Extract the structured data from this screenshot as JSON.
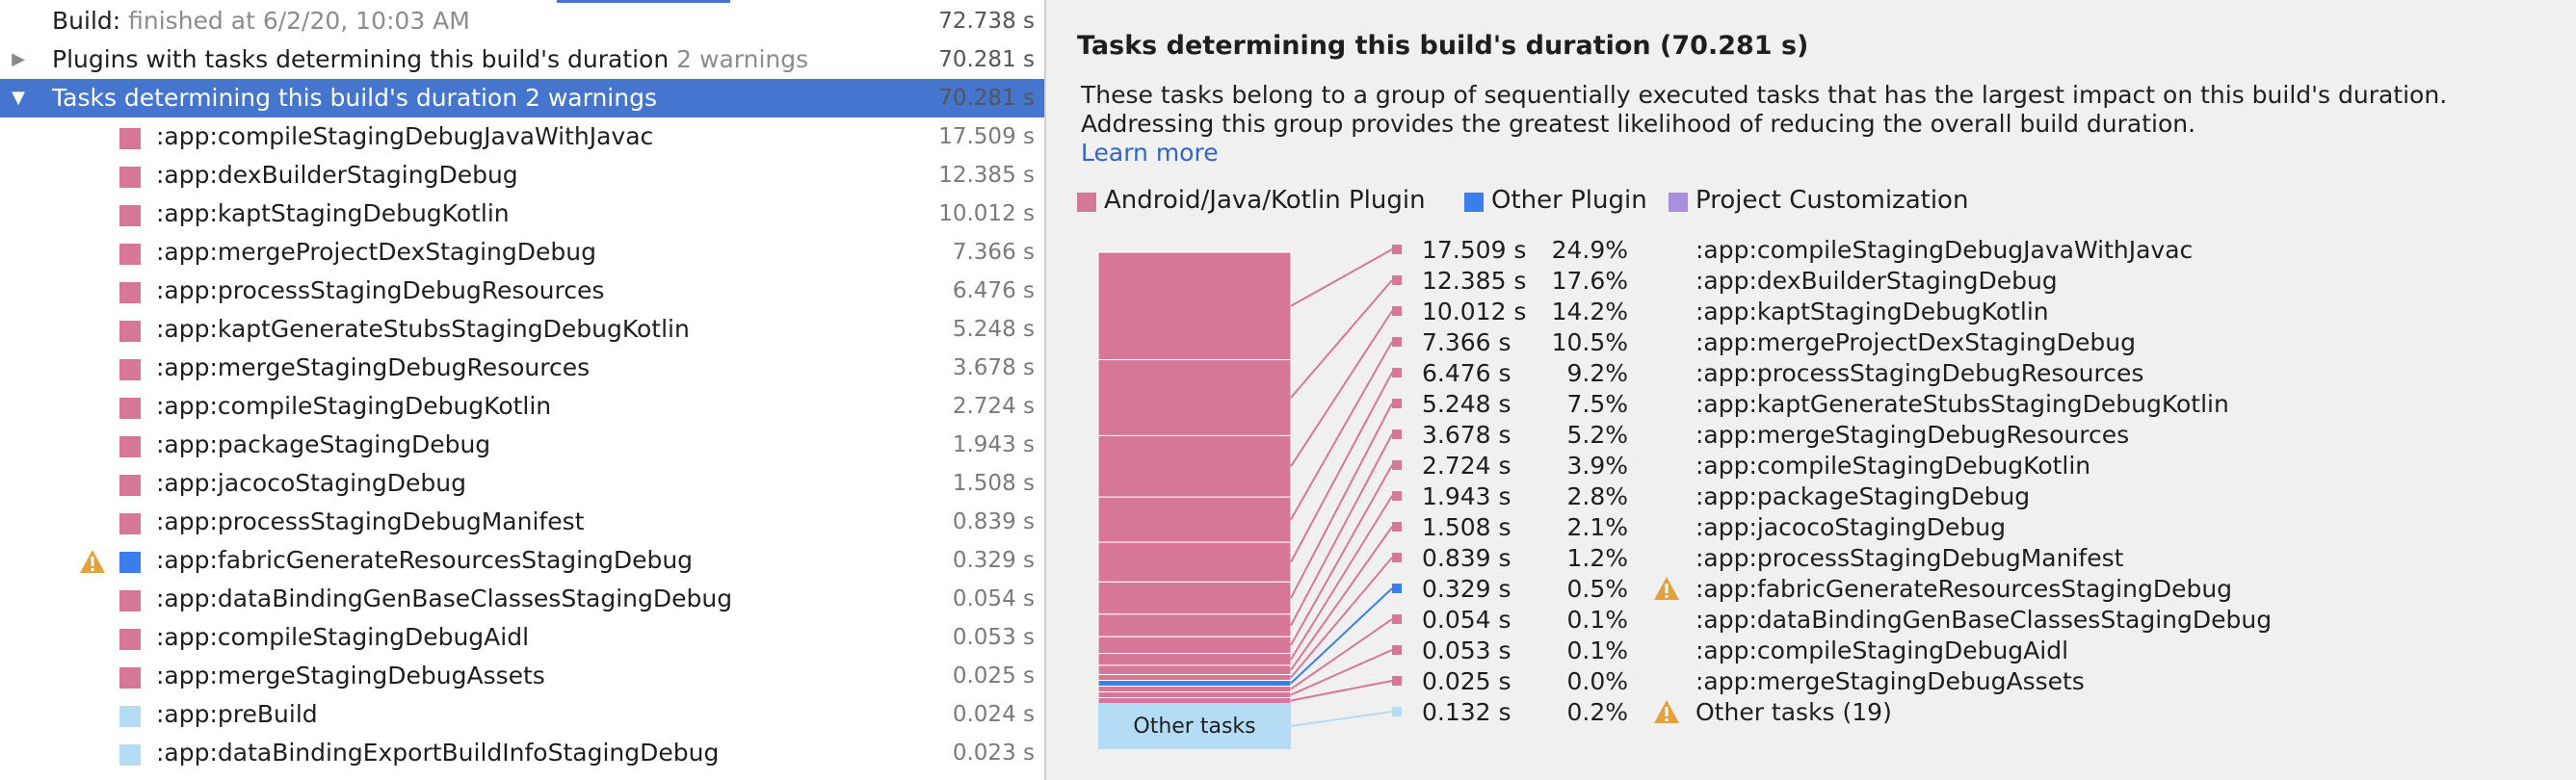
{
  "colors": {
    "android_plugin": "#d77797",
    "other_plugin": "#3b7dea",
    "project_customization": "#a98fdb",
    "other_tasks": "#b4dcf5",
    "selection": "#4476cf",
    "link": "#2f65ca",
    "warning": "#e3a13e"
  },
  "tree": {
    "rows": [
      {
        "label": "Build:",
        "suffix": "finished at 6/2/20, 10:03 AM",
        "duration": "72.738 s",
        "arrow": ""
      },
      {
        "label": "Plugins with tasks determining this build's duration",
        "suffix": "2 warnings",
        "duration": "70.281 s",
        "arrow": "collapsed"
      },
      {
        "label": "Tasks determining this build's duration",
        "suffix": "2 warnings",
        "duration": "70.281 s",
        "arrow": "expanded"
      }
    ],
    "tasks": [
      {
        "name": ":app:compileStagingDebugJavaWithJavac",
        "duration": "17.509 s",
        "category": "android",
        "warning": false
      },
      {
        "name": ":app:dexBuilderStagingDebug",
        "duration": "12.385 s",
        "category": "android",
        "warning": false
      },
      {
        "name": ":app:kaptStagingDebugKotlin",
        "duration": "10.012 s",
        "category": "android",
        "warning": false
      },
      {
        "name": ":app:mergeProjectDexStagingDebug",
        "duration": "7.366 s",
        "category": "android",
        "warning": false
      },
      {
        "name": ":app:processStagingDebugResources",
        "duration": "6.476 s",
        "category": "android",
        "warning": false
      },
      {
        "name": ":app:kaptGenerateStubsStagingDebugKotlin",
        "duration": "5.248 s",
        "category": "android",
        "warning": false
      },
      {
        "name": ":app:mergeStagingDebugResources",
        "duration": "3.678 s",
        "category": "android",
        "warning": false
      },
      {
        "name": ":app:compileStagingDebugKotlin",
        "duration": "2.724 s",
        "category": "android",
        "warning": false
      },
      {
        "name": ":app:packageStagingDebug",
        "duration": "1.943 s",
        "category": "android",
        "warning": false
      },
      {
        "name": ":app:jacocoStagingDebug",
        "duration": "1.508 s",
        "category": "android",
        "warning": false
      },
      {
        "name": ":app:processStagingDebugManifest",
        "duration": "0.839 s",
        "category": "android",
        "warning": false
      },
      {
        "name": ":app:fabricGenerateResourcesStagingDebug",
        "duration": "0.329 s",
        "category": "other",
        "warning": true
      },
      {
        "name": ":app:dataBindingGenBaseClassesStagingDebug",
        "duration": "0.054 s",
        "category": "android",
        "warning": false
      },
      {
        "name": ":app:compileStagingDebugAidl",
        "duration": "0.053 s",
        "category": "android",
        "warning": false
      },
      {
        "name": ":app:mergeStagingDebugAssets",
        "duration": "0.025 s",
        "category": "android",
        "warning": false
      },
      {
        "name": ":app:preBuild",
        "duration": "0.024 s",
        "category": "others",
        "warning": false
      },
      {
        "name": ":app:dataBindingExportBuildInfoStagingDebug",
        "duration": "0.023 s",
        "category": "others",
        "warning": false
      }
    ]
  },
  "detail": {
    "title": "Tasks determining this build's duration (70.281 s)",
    "description_line1": "These tasks belong to a group of sequentially executed tasks that has the largest impact on this build's duration.",
    "description_line2": "Addressing this group provides the greatest likelihood of reducing the overall build duration.",
    "learn_more": "Learn more",
    "legend": [
      {
        "label": "Android/Java/Kotlin Plugin",
        "color": "#d77797"
      },
      {
        "label": "Other Plugin",
        "color": "#3b7dea"
      },
      {
        "label": "Project Customization",
        "color": "#a98fdb"
      }
    ]
  },
  "chart_data": {
    "type": "bar",
    "stacked": true,
    "unit": "s",
    "total": 70.281,
    "items": [
      {
        "task": ":app:compileStagingDebugJavaWithJavac",
        "seconds": 17.509,
        "duration": "17.509 s",
        "percent": "24.9%",
        "category": "android",
        "warning": false
      },
      {
        "task": ":app:dexBuilderStagingDebug",
        "seconds": 12.385,
        "duration": "12.385 s",
        "percent": "17.6%",
        "category": "android",
        "warning": false
      },
      {
        "task": ":app:kaptStagingDebugKotlin",
        "seconds": 10.012,
        "duration": "10.012 s",
        "percent": "14.2%",
        "category": "android",
        "warning": false
      },
      {
        "task": ":app:mergeProjectDexStagingDebug",
        "seconds": 7.366,
        "duration": "7.366 s",
        "percent": "10.5%",
        "category": "android",
        "warning": false
      },
      {
        "task": ":app:processStagingDebugResources",
        "seconds": 6.476,
        "duration": "6.476 s",
        "percent": "9.2%",
        "category": "android",
        "warning": false
      },
      {
        "task": ":app:kaptGenerateStubsStagingDebugKotlin",
        "seconds": 5.248,
        "duration": "5.248 s",
        "percent": "7.5%",
        "category": "android",
        "warning": false
      },
      {
        "task": ":app:mergeStagingDebugResources",
        "seconds": 3.678,
        "duration": "3.678 s",
        "percent": "5.2%",
        "category": "android",
        "warning": false
      },
      {
        "task": ":app:compileStagingDebugKotlin",
        "seconds": 2.724,
        "duration": "2.724 s",
        "percent": "3.9%",
        "category": "android",
        "warning": false
      },
      {
        "task": ":app:packageStagingDebug",
        "seconds": 1.943,
        "duration": "1.943 s",
        "percent": "2.8%",
        "category": "android",
        "warning": false
      },
      {
        "task": ":app:jacocoStagingDebug",
        "seconds": 1.508,
        "duration": "1.508 s",
        "percent": "2.1%",
        "category": "android",
        "warning": false
      },
      {
        "task": ":app:processStagingDebugManifest",
        "seconds": 0.839,
        "duration": "0.839 s",
        "percent": "1.2%",
        "category": "android",
        "warning": false
      },
      {
        "task": ":app:fabricGenerateResourcesStagingDebug",
        "seconds": 0.329,
        "duration": "0.329 s",
        "percent": "0.5%",
        "category": "other",
        "warning": true
      },
      {
        "task": ":app:dataBindingGenBaseClassesStagingDebug",
        "seconds": 0.054,
        "duration": "0.054 s",
        "percent": "0.1%",
        "category": "android",
        "warning": false
      },
      {
        "task": ":app:compileStagingDebugAidl",
        "seconds": 0.053,
        "duration": "0.053 s",
        "percent": "0.1%",
        "category": "android",
        "warning": false
      },
      {
        "task": ":app:mergeStagingDebugAssets",
        "seconds": 0.025,
        "duration": "0.025 s",
        "percent": "0.0%",
        "category": "android",
        "warning": false
      },
      {
        "task": "Other tasks (19)",
        "seconds": 0.132,
        "duration": "0.132 s",
        "percent": "0.2%",
        "category": "others",
        "warning": true
      }
    ],
    "other_tasks_bar_label": "Other tasks"
  }
}
